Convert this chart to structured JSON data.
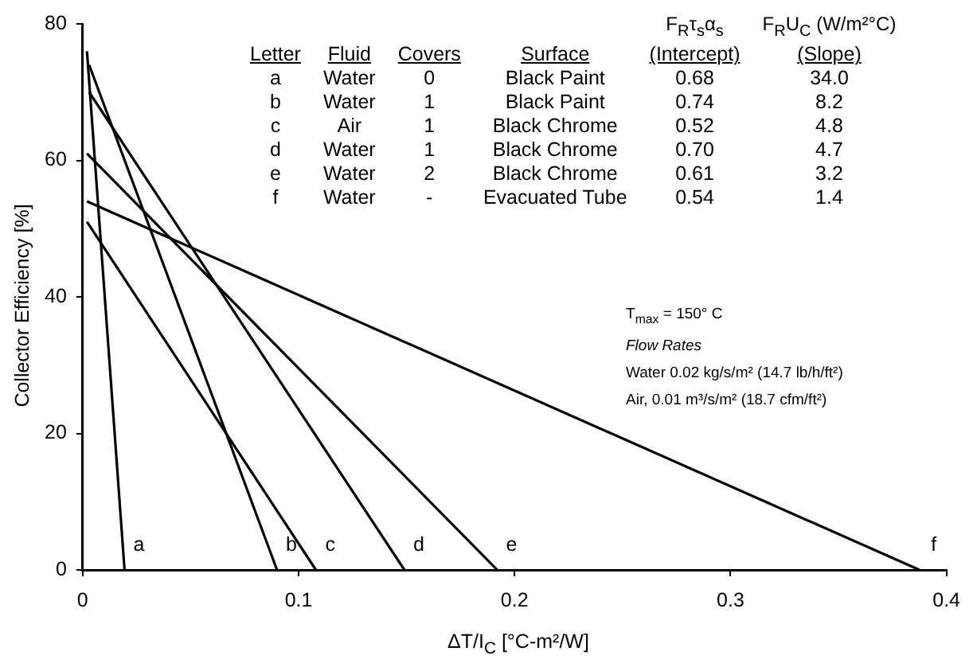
{
  "chart_data": {
    "type": "line",
    "xlabel": "ΔT/I$_{C}$ [°C-m²/W]",
    "ylabel": "Collector Efficiency [%]",
    "xlim": [
      0,
      0.4
    ],
    "xticks": [
      0,
      0.1,
      0.2,
      0.3,
      0.4
    ],
    "ylim": [
      0,
      80
    ],
    "yticks": [
      0,
      20,
      40,
      60,
      80
    ],
    "grid": false,
    "legend": false,
    "marker": "none",
    "line_style": "solid",
    "series": [
      {
        "name": "a",
        "color": "#000000",
        "x": [
          0.002,
          0.0194
        ],
        "values": [
          76,
          0
        ]
      },
      {
        "name": "b",
        "color": "#000000",
        "x": [
          0.003,
          0.09
        ],
        "values": [
          74,
          0
        ]
      },
      {
        "name": "c",
        "color": "#000000",
        "x": [
          0.002,
          0.108
        ],
        "values": [
          51,
          0
        ]
      },
      {
        "name": "d",
        "color": "#000000",
        "x": [
          0.003,
          0.149
        ],
        "values": [
          70,
          0
        ]
      },
      {
        "name": "e",
        "color": "#000000",
        "x": [
          0.002,
          0.192
        ],
        "values": [
          61,
          0
        ]
      },
      {
        "name": "f",
        "color": "#000000",
        "x": [
          0.002,
          0.3875
        ],
        "values": [
          54,
          0
        ]
      }
    ],
    "annotations": [
      "F$_{R}$τ$_{s}$α$_{s}$",
      "F$_{R}$U$_{C}$ (W/m²°C)",
      "Letter",
      "Fluid",
      "Covers",
      "Surface",
      "(Intercept)",
      "(Slope)",
      "a",
      "Water",
      "0",
      "Black Paint",
      "0.68",
      "34.0",
      "b",
      "Water",
      "1",
      "Black Paint",
      "0.74",
      "8.2",
      "c",
      "Air",
      "1",
      "Black Chrome",
      "0.52",
      "4.8",
      "d",
      "Water",
      "1",
      "Black Chrome",
      "0.70",
      "4.7",
      "e",
      "Water",
      "2",
      "Black Chrome",
      "0.61",
      "3.2",
      "f",
      "Water",
      "-",
      "Evacuated Tube",
      "0.54",
      "1.4",
      "T$_{max}$ = 150° C",
      "Flow Rates",
      "Water 0.02 kg/s/m² (14.7 lb/h/ft²)",
      "Air, 0.01 m³/s/m² (18.7 cfm/ft²)"
    ]
  }
}
